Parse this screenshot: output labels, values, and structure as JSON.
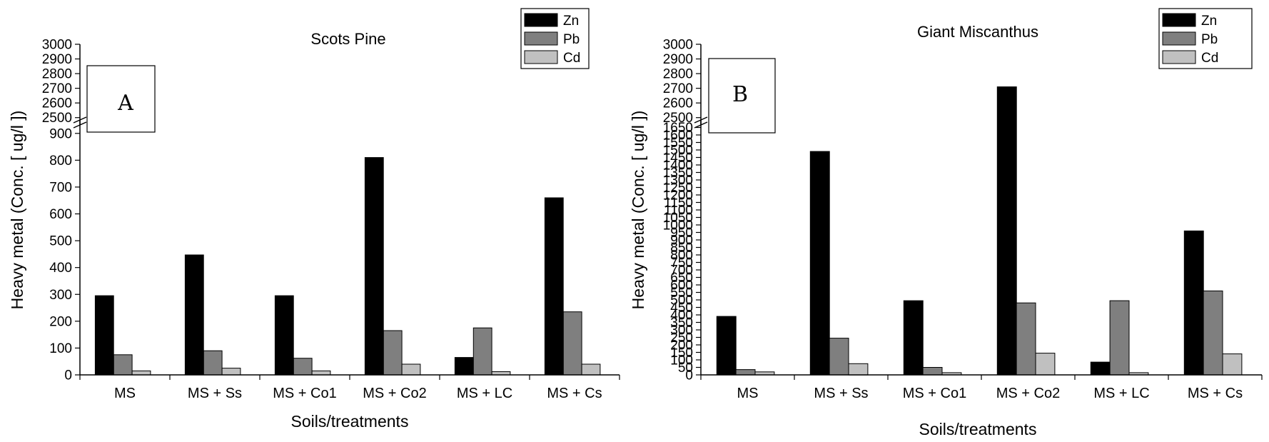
{
  "chart_data": [
    {
      "type": "bar",
      "panel_label": "A",
      "title": "Scots Pine",
      "xlabel": "Soils/treatments",
      "ylabel": "Heavy metal (Conc. [ ug/l ])",
      "categories": [
        "MS",
        "MS + Ss",
        "MS + Co1",
        "MS + Co2",
        "MS + LC",
        "MS + Cs"
      ],
      "series": [
        {
          "name": "Zn",
          "color": "#000000",
          "values": [
            295,
            447,
            295,
            810,
            65,
            660
          ]
        },
        {
          "name": "Pb",
          "color": "#7f7f7f",
          "values": [
            75,
            90,
            62,
            165,
            175,
            235
          ]
        },
        {
          "name": "Cd",
          "color": "#c0c0c0",
          "values": [
            15,
            25,
            15,
            40,
            12,
            40
          ]
        }
      ],
      "ylim": [
        0,
        3000
      ],
      "axis_break": [
        950,
        2450
      ],
      "yticks_lower": [
        "0",
        "100",
        "200",
        "300",
        "400",
        "500",
        "600",
        "700",
        "800",
        "900"
      ],
      "yticks_upper": [
        "2500",
        "2600",
        "2700",
        "2800",
        "2900",
        "3000"
      ],
      "legend": [
        "Zn",
        "Pb",
        "Cd"
      ],
      "legend_position": "top-right",
      "grid": false
    },
    {
      "type": "bar",
      "panel_label": "B",
      "title": "Giant Miscanthus",
      "xlabel": "Soils/treatments",
      "ylabel": "Heavy metal (Conc. [ ug/l ])",
      "categories": [
        "MS",
        "MS + Ss",
        "MS + Co1",
        "MS + Co2",
        "MS + LC",
        "MS + Cs"
      ],
      "series": [
        {
          "name": "Zn",
          "color": "#000000",
          "values": [
            390,
            1490,
            495,
            2710,
            85,
            960
          ]
        },
        {
          "name": "Pb",
          "color": "#7f7f7f",
          "values": [
            35,
            245,
            50,
            480,
            495,
            560
          ]
        },
        {
          "name": "Cd",
          "color": "#c0c0c0",
          "values": [
            20,
            75,
            15,
            145,
            15,
            140
          ]
        }
      ],
      "ylim": [
        0,
        3000
      ],
      "axis_break": [
        1700,
        2450
      ],
      "yticks_lower": [
        "0",
        "50",
        "100",
        "150",
        "200",
        "250",
        "300",
        "350",
        "400",
        "450",
        "500",
        "550",
        "600",
        "650",
        "700",
        "750",
        "800",
        "850",
        "900",
        "950",
        "1000",
        "1050",
        "1100",
        "1150",
        "1200",
        "1250",
        "1300",
        "1350",
        "1400",
        "1450",
        "1500",
        "1550",
        "1600",
        "1650"
      ],
      "yticks_upper": [
        "2500",
        "2600",
        "2700",
        "2800",
        "2900",
        "3000"
      ],
      "legend": [
        "Zn",
        "Pb",
        "Cd"
      ],
      "legend_position": "top-right",
      "grid": false
    }
  ]
}
